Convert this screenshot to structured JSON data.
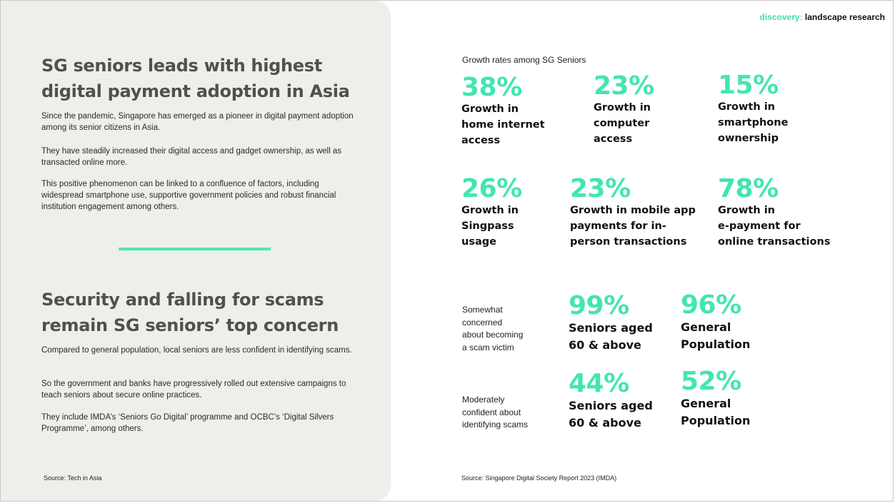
{
  "brand": {
    "accent": "discovery:",
    "rest": "landscape research"
  },
  "left": {
    "heading1": [
      "SG seniors leads with highest",
      "digital payment adoption in Asia"
    ],
    "paragraphs1": [
      "Since the pandemic, Singapore has emerged as a pioneer in digital payment adoption among its senior citizens in Asia.",
      "They have steadily increased their digital access and gadget ownership, as well as transacted online more.",
      "This positive phenomenon can be linked to a confluence of factors, including widespread smartphone use, supportive government policies and robust financial institution engagement among others."
    ],
    "heading2": [
      "Security and falling for scams",
      "remain SG seniors’ top concern"
    ],
    "paragraphs2": [
      "Compared to general population, local seniors are less confident in identifying scams.",
      "So the government and banks have progressively rolled out extensive campaigns to teach seniors about secure online practices.",
      "They include IMDA’s ‘Seniors Go Digital’ programme and OCBC’s ‘Digital Silvers Programme’, among others."
    ],
    "source": "Source: Tech in Asia"
  },
  "right": {
    "section_title": "Growth rates among SG Seniors",
    "growth": [
      {
        "pct": "38%",
        "label": "Growth in\nhome internet\naccess"
      },
      {
        "pct": "23%",
        "label": "Growth in\ncomputer\naccess"
      },
      {
        "pct": "15%",
        "label": "Growth in\nsmartphone\nownership"
      },
      {
        "pct": "26%",
        "label": "Growth in\nSingpass\nusage"
      },
      {
        "pct": "23%",
        "label": "Growth in mobile app\npayments for in-\nperson transactions"
      },
      {
        "pct": "78%",
        "label": "Growth in\ne-payment for\nonline transactions"
      }
    ],
    "comparisons": [
      {
        "label": "Somewhat\nconcerned\nabout becoming\na scam victim",
        "seniors": {
          "pct": "99%",
          "label": "Seniors aged\n60 & above"
        },
        "general": {
          "pct": "96%",
          "label": "General\nPopulation"
        }
      },
      {
        "label": "Moderately\nconfident about\nidentifying scams",
        "seniors": {
          "pct": "44%",
          "label": "Seniors aged\n60 & above"
        },
        "general": {
          "pct": "52%",
          "label": "General\nPopulation"
        }
      }
    ],
    "source": "Source: Singapore Digital Society Report 2023 (IMDA)"
  },
  "colors": {
    "accent": "#43e5b2",
    "panel": "#eeeeea",
    "heading": "#505050"
  }
}
